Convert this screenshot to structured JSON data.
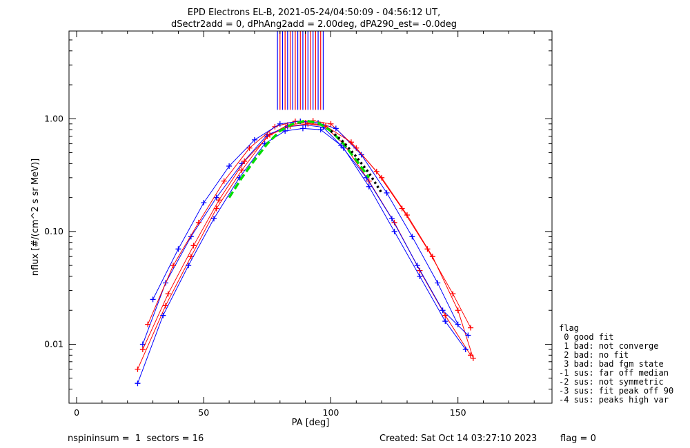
{
  "colors": {
    "series_red": "#ff0000",
    "series_blue": "#0000ff",
    "fit_green": "#00dd00",
    "fit_black": "#000000"
  },
  "chart_data": {
    "type": "line",
    "title_line1": "EPD Electrons EL-B, 2021-05-24/04:50:09 - 04:56:12 UT,",
    "title_line2": "dSectr2add = 0, dPhAng2add = 2.00deg, dPA290_est=  -0.0deg",
    "xlabel": "PA [deg]",
    "ylabel": "nflux [#/(cm^2 s sr MeV)]",
    "xlim": [
      -3,
      187
    ],
    "ylim": [
      0.003,
      6.0
    ],
    "yscale": "log",
    "x_ticks": [
      0,
      50,
      100,
      150
    ],
    "x_tick_labels": [
      "0",
      "50",
      "100",
      "150"
    ],
    "y_ticks": [
      0.01,
      0.1,
      1.0
    ],
    "y_tick_labels": [
      "0.01",
      "0.10",
      "1.00"
    ],
    "series": [
      {
        "color": "#ff0000",
        "x": [
          24,
          35,
          45,
          55,
          65,
          75,
          83,
          90,
          97,
          105,
          115,
          125,
          135,
          145,
          155
        ],
        "y": [
          0.006,
          0.022,
          0.06,
          0.16,
          0.35,
          0.7,
          0.88,
          0.92,
          0.88,
          0.6,
          0.28,
          0.12,
          0.045,
          0.018,
          0.008
        ]
      },
      {
        "color": "#0000ff",
        "x": [
          26,
          35,
          45,
          55,
          65,
          75,
          83,
          90,
          97,
          105,
          115,
          125,
          135,
          145,
          153
        ],
        "y": [
          0.01,
          0.035,
          0.09,
          0.2,
          0.4,
          0.72,
          0.85,
          0.88,
          0.84,
          0.55,
          0.25,
          0.1,
          0.04,
          0.016,
          0.009
        ]
      },
      {
        "color": "#ff0000",
        "x": [
          28,
          38,
          48,
          58,
          68,
          78,
          86,
          93,
          100,
          110,
          120,
          130,
          140,
          150,
          156
        ],
        "y": [
          0.015,
          0.05,
          0.12,
          0.28,
          0.55,
          0.85,
          0.95,
          0.96,
          0.9,
          0.55,
          0.3,
          0.14,
          0.06,
          0.02,
          0.0075
        ]
      },
      {
        "color": "#0000ff",
        "x": [
          24,
          34,
          44,
          54,
          64,
          74,
          82,
          89,
          96,
          104,
          114,
          124,
          134,
          144,
          154
        ],
        "y": [
          0.0045,
          0.018,
          0.05,
          0.13,
          0.3,
          0.6,
          0.78,
          0.82,
          0.8,
          0.58,
          0.3,
          0.13,
          0.05,
          0.02,
          0.012
        ]
      },
      {
        "color": "#0000ff",
        "x": [
          30,
          40,
          50,
          60,
          70,
          80,
          88,
          95,
          102,
          112,
          122,
          132,
          142,
          150
        ],
        "y": [
          0.025,
          0.07,
          0.18,
          0.38,
          0.65,
          0.9,
          0.95,
          0.92,
          0.82,
          0.48,
          0.22,
          0.09,
          0.035,
          0.015
        ]
      },
      {
        "color": "#ff0000",
        "x": [
          26,
          36,
          46,
          56,
          66,
          76,
          84,
          91,
          98,
          108,
          118,
          128,
          138,
          148,
          155
        ],
        "y": [
          0.009,
          0.028,
          0.075,
          0.19,
          0.42,
          0.72,
          0.86,
          0.9,
          0.86,
          0.62,
          0.34,
          0.16,
          0.07,
          0.028,
          0.014
        ]
      }
    ],
    "fit_curves": [
      {
        "color": "#00dd00",
        "style": "dashed",
        "x": [
          60,
          65,
          70,
          75,
          80,
          85,
          90,
          95,
          100,
          105,
          110,
          115
        ],
        "y": [
          0.2,
          0.3,
          0.43,
          0.6,
          0.78,
          0.9,
          0.96,
          0.92,
          0.78,
          0.6,
          0.43,
          0.3
        ]
      },
      {
        "color": "#000000",
        "style": "dotted",
        "x": [
          100,
          105,
          110,
          115,
          120
        ],
        "y": [
          0.78,
          0.62,
          0.46,
          0.33,
          0.22
        ]
      }
    ],
    "vertical_lines": {
      "x_min": 79,
      "x_max": 97,
      "y_from": 1.2,
      "colors": [
        "#0000ff",
        "#ff0000"
      ]
    }
  },
  "legend": {
    "title": "flag",
    "items": [
      " 0 good fit",
      " 1 bad: not converge",
      " 2 bad: no fit",
      " 3 bad: bad fgm state",
      "-1 sus: far off median",
      "-2 sus: not symmetric",
      "-3 sus: fit peak off 90",
      "-4 sus: peaks high var"
    ]
  },
  "footer": {
    "left": "nspininsum =  1  sectors = 16",
    "created": "Created: Sat Oct 14 03:27:10 2023",
    "flag": "flag = 0"
  }
}
